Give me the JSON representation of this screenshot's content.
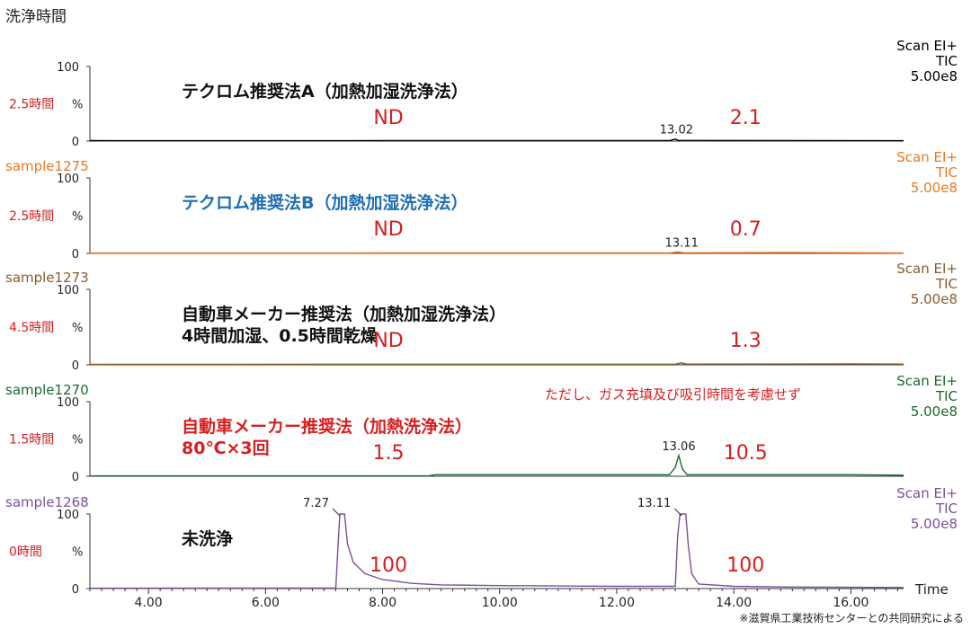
{
  "figure": {
    "y_group_label": "洗浄時間",
    "footnote": "※滋賀県工業技術センターとの共同研究による"
  },
  "chart_data": {
    "type": "line",
    "x_axis": {
      "label": "Time",
      "range": [
        3.0,
        16.9
      ],
      "ticks": [
        "4.00",
        "6.00",
        "8.00",
        "10.00",
        "12.00",
        "14.00",
        "16.00"
      ],
      "tick_values": [
        4,
        6,
        8,
        10,
        12,
        14,
        16
      ]
    },
    "y_axis": {
      "range": [
        0,
        100
      ],
      "ticks": [
        "100",
        "0"
      ],
      "unit": "%"
    },
    "panels": [
      {
        "sample": "",
        "duration": "2.5時間",
        "scan": [
          "Scan EI+",
          "TIC",
          "5.00e8"
        ],
        "color": "#000000",
        "method": [
          "テクロム推奨法A（加熱加湿洗浄法）"
        ],
        "method_color": "#111111",
        "note": "",
        "values": [
          {
            "text": "ND",
            "x": 8.1
          },
          {
            "text": "2.1",
            "x": 14.2
          }
        ],
        "peaks": [
          {
            "label": "13.02",
            "x": 13.02,
            "height": 3
          }
        ],
        "series_points": [
          [
            3.0,
            0.6
          ],
          [
            5.0,
            0.5
          ],
          [
            8.0,
            0.6
          ],
          [
            12.9,
            0.6
          ],
          [
            13.0,
            2.8
          ],
          [
            13.05,
            0.9
          ],
          [
            13.4,
            0.8
          ],
          [
            16.9,
            0.5
          ]
        ]
      },
      {
        "sample": "sample1275",
        "duration": "2.5時間",
        "scan": [
          "Scan EI+",
          "TIC",
          "5.00e8"
        ],
        "color": "#e87722",
        "method": [
          "テクロム推奨法B（加熱加湿洗浄法）"
        ],
        "method_color": "#1f6fb5",
        "note": "",
        "values": [
          {
            "text": "ND",
            "x": 8.1
          },
          {
            "text": "0.7",
            "x": 14.2
          }
        ],
        "peaks": [
          {
            "label": "13.11",
            "x": 13.11,
            "height": 2
          }
        ],
        "series_points": [
          [
            3.0,
            0.5
          ],
          [
            8.0,
            0.6
          ],
          [
            12.9,
            0.6
          ],
          [
            13.05,
            1.8
          ],
          [
            13.15,
            0.8
          ],
          [
            15.0,
            1.2
          ],
          [
            16.9,
            0.6
          ]
        ]
      },
      {
        "sample": "sample1273",
        "duration": "4.5時間",
        "scan": [
          "Scan EI+",
          "TIC",
          "5.00e8"
        ],
        "color": "#8b5a2b",
        "method": [
          "自動車メーカー推奨法（加熱加湿洗浄法）",
          "4時間加湿、0.5時間乾燥"
        ],
        "method_color": "#111111",
        "note": "",
        "values": [
          {
            "text": "ND",
            "x": 8.1
          },
          {
            "text": "1.3",
            "x": 14.2
          }
        ],
        "peaks": [],
        "series_points": [
          [
            3.0,
            0.6
          ],
          [
            8.0,
            0.8
          ],
          [
            13.0,
            0.8
          ],
          [
            13.1,
            2.5
          ],
          [
            13.2,
            1.0
          ],
          [
            16.0,
            1.2
          ],
          [
            16.9,
            1.0
          ]
        ]
      },
      {
        "sample": "sample1270",
        "duration": "1.5時間",
        "scan": [
          "Scan EI+",
          "TIC",
          "5.00e8"
        ],
        "color": "#1a6b2e",
        "method": [
          "自動車メーカー推奨法（加熱洗浄法）",
          "80℃×3回"
        ],
        "method_color": "#d81e1e",
        "note": "ただし、ガス充填及び吸引時間を考慮せず",
        "values": [
          {
            "text": "1.5",
            "x": 8.1
          },
          {
            "text": "10.5",
            "x": 14.2
          }
        ],
        "peaks": [
          {
            "label": "13.06",
            "x": 13.06,
            "height": 28
          }
        ],
        "series_points": [
          [
            3.0,
            0.5
          ],
          [
            8.8,
            0.6
          ],
          [
            8.9,
            2.0
          ],
          [
            12.9,
            2.0
          ],
          [
            13.0,
            12.0
          ],
          [
            13.06,
            28.0
          ],
          [
            13.12,
            10.0
          ],
          [
            13.2,
            2.0
          ],
          [
            16.0,
            2.0
          ],
          [
            16.9,
            1.5
          ]
        ]
      },
      {
        "sample": "sample1268",
        "duration": "0時間",
        "scan": [
          "Scan EI+",
          "TIC",
          "5.00e8"
        ],
        "color": "#7b4fa0",
        "method": [
          "未洗浄"
        ],
        "method_color": "#111111",
        "note": "",
        "values": [
          {
            "text": "100",
            "x": 8.1
          },
          {
            "text": "100",
            "x": 14.2
          }
        ],
        "peaks": [
          {
            "label": "7.27",
            "x": 7.27,
            "height": 100
          },
          {
            "label": "13.11",
            "x": 13.11,
            "height": 100
          }
        ],
        "series_points": [
          [
            3.0,
            0.5
          ],
          [
            7.2,
            0.8
          ],
          [
            7.24,
            60
          ],
          [
            7.27,
            100
          ],
          [
            7.35,
            100
          ],
          [
            7.4,
            60
          ],
          [
            7.5,
            35
          ],
          [
            7.7,
            20
          ],
          [
            8.0,
            12
          ],
          [
            8.5,
            7
          ],
          [
            9.0,
            5
          ],
          [
            10.0,
            4
          ],
          [
            11.0,
            3.5
          ],
          [
            12.0,
            3
          ],
          [
            13.0,
            3
          ],
          [
            13.04,
            70
          ],
          [
            13.08,
            100
          ],
          [
            13.18,
            100
          ],
          [
            13.22,
            60
          ],
          [
            13.28,
            20
          ],
          [
            13.4,
            6
          ],
          [
            14.0,
            3
          ],
          [
            15.0,
            2
          ],
          [
            16.9,
            1.5
          ]
        ]
      }
    ]
  }
}
